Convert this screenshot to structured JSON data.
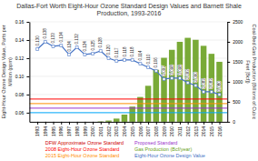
{
  "chart_data": {
    "type": "combo",
    "title": "Dallas-Fort Worth Eight-Hour Ozone Standard Design Values and Barnett Shale Production, 1993-2016",
    "x": [
      1993,
      1994,
      1995,
      1996,
      1997,
      1998,
      1999,
      2000,
      2001,
      2002,
      2003,
      2004,
      2005,
      2006,
      2007,
      2008,
      2009,
      2010,
      2011,
      2012,
      2013,
      2014,
      2015,
      2016
    ],
    "xlim": [
      1992,
      2017
    ],
    "xticks": [
      1993,
      1994,
      1995,
      1996,
      1997,
      1998,
      1999,
      2000,
      2001,
      2002,
      2003,
      2004,
      2005,
      2006,
      2007,
      2008,
      2009,
      2010,
      2011,
      2012,
      2013,
      2014,
      2015,
      2016
    ],
    "ylim": [
      0.05,
      0.16
    ],
    "yticks": [
      0.06,
      0.08,
      {
        "value": 0.1,
        "label": "0.10"
      },
      0.12,
      0.14,
      0.16
    ],
    "y2lim": [
      0,
      2500
    ],
    "y2ticks": [
      0,
      500,
      1000,
      1500,
      2000,
      2500
    ],
    "ylabel": "Eight-Hour Ozone Design Value, Parts per Million (ppm)",
    "y2label": "Coal-Bed Gas Production (Billions of Cubic Feet [Bcf])",
    "grid": true,
    "data_labels": true,
    "series": [
      {
        "type": "bar",
        "axis": "y2",
        "color": "#6aa121",
        "values": [
          0,
          0,
          0,
          0,
          0,
          0,
          0,
          0,
          10,
          30,
          80,
          180,
          380,
          620,
          900,
          1300,
          1600,
          1800,
          2000,
          2100,
          2050,
          1900,
          1700,
          1500
        ]
      },
      {
        "type": "line",
        "color": "#4472c4",
        "marker": "square",
        "values": [
          0.13,
          0.138,
          0.133,
          0.134,
          0.124,
          0.132,
          0.124,
          0.125,
          0.128,
          0.12,
          0.117,
          0.118,
          0.118,
          0.114,
          0.11,
          0.106,
          0.097,
          0.098,
          0.098,
          0.093,
          0.09,
          0.083,
          0.083,
          0.08
        ],
        "value_labels": [
          "0.130",
          "0.138",
          "0.133",
          "0.134",
          "0.124",
          "0.132",
          "0.124",
          "0.125",
          "0.128",
          "0.120",
          "0.117",
          "0.118",
          "0.118",
          "0.114",
          "0.110",
          "0.106",
          "0.097",
          "0.098",
          "0.098",
          "0.093",
          "0.090",
          "0.083",
          "0.083",
          "0.080"
        ]
      }
    ],
    "hlines": [
      {
        "value": 0.075,
        "color": "#ff0000"
      },
      {
        "value": 0.07,
        "color": "#ff8c00"
      },
      {
        "value": 0.065,
        "color": "#9932cc"
      },
      {
        "value": 0.06,
        "color": "#00aaff"
      }
    ],
    "annotations": [
      {
        "text": "DFW Approximate Ozone Standard",
        "color": "#cc0000"
      },
      {
        "text": "2008 Eight-Hour Ozone Standard",
        "color": "#ff0000"
      },
      {
        "text": "2015 Eight-Hour Ozone Standard",
        "color": "#ff8c00"
      },
      {
        "text": "Proposed Standard",
        "color": "#9932cc"
      },
      {
        "text": "Gas Production (Bcf/year)",
        "color": "#6aa121"
      },
      {
        "text": "Eight-Hour Ozone Design Value",
        "color": "#4472c4"
      }
    ]
  }
}
